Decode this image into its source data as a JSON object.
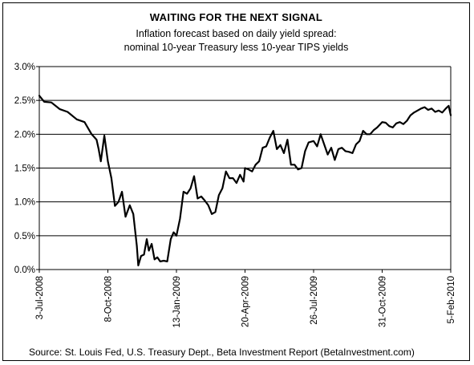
{
  "chart_data": {
    "type": "line",
    "title": "WAITING FOR THE NEXT SIGNAL",
    "subtitle_lines": [
      "Inflation forecast based on daily yield spread:",
      "nominal 10-year Treasury less 10-year TIPS yields"
    ],
    "xlabel": "",
    "ylabel": "",
    "ylim": [
      0,
      3
    ],
    "y_ticks": [
      0,
      0.5,
      1.0,
      1.5,
      2.0,
      2.5,
      3.0
    ],
    "y_tick_labels": [
      "0.0%",
      "0.5%",
      "1.0%",
      "1.5%",
      "2.0%",
      "2.5%",
      "3.0%"
    ],
    "xlim": [
      "2008-07-03",
      "2010-02-05"
    ],
    "x_ticks": [
      "2008-07-03",
      "2008-10-08",
      "2009-01-13",
      "2009-04-20",
      "2009-07-26",
      "2009-10-31",
      "2010-02-05"
    ],
    "x_tick_labels": [
      "3-Jul-2008",
      "8-Oct-2008",
      "13-Jan-2009",
      "20-Apr-2009",
      "26-Jul-2009",
      "31-Oct-2009",
      "5-Feb-2010"
    ],
    "grid": "horizontal",
    "legend": "none",
    "line_color": "#000000",
    "series": [
      {
        "x": [
          "2008-07-03",
          "2008-07-10",
          "2008-07-20",
          "2008-08-01",
          "2008-08-12",
          "2008-08-25",
          "2008-09-05",
          "2008-09-15",
          "2008-09-22",
          "2008-09-25",
          "2008-09-28",
          "2008-10-03",
          "2008-10-08",
          "2008-10-13",
          "2008-10-18",
          "2008-10-23",
          "2008-10-28",
          "2008-11-02",
          "2008-11-08",
          "2008-11-13",
          "2008-11-18",
          "2008-11-20",
          "2008-11-24",
          "2008-11-28",
          "2008-12-02",
          "2008-12-05",
          "2008-12-09",
          "2008-12-13",
          "2008-12-17",
          "2008-12-21",
          "2008-12-26",
          "2008-12-31",
          "2009-01-05",
          "2009-01-09",
          "2009-01-13",
          "2009-01-18",
          "2009-01-23",
          "2009-01-28",
          "2009-02-02",
          "2009-02-07",
          "2009-02-12",
          "2009-02-17",
          "2009-02-22",
          "2009-02-27",
          "2009-03-04",
          "2009-03-09",
          "2009-03-14",
          "2009-03-19",
          "2009-03-24",
          "2009-03-29",
          "2009-04-03",
          "2009-04-08",
          "2009-04-13",
          "2009-04-18",
          "2009-04-20",
          "2009-04-25",
          "2009-04-30",
          "2009-05-05",
          "2009-05-10",
          "2009-05-15",
          "2009-05-20",
          "2009-05-25",
          "2009-05-30",
          "2009-06-04",
          "2009-06-09",
          "2009-06-14",
          "2009-06-19",
          "2009-06-24",
          "2009-06-29",
          "2009-07-04",
          "2009-07-09",
          "2009-07-14",
          "2009-07-19",
          "2009-07-26",
          "2009-07-31",
          "2009-08-05",
          "2009-08-10",
          "2009-08-15",
          "2009-08-20",
          "2009-08-25",
          "2009-08-30",
          "2009-09-04",
          "2009-09-09",
          "2009-09-14",
          "2009-09-19",
          "2009-09-24",
          "2009-09-29",
          "2009-10-04",
          "2009-10-09",
          "2009-10-14",
          "2009-10-19",
          "2009-10-24",
          "2009-10-31",
          "2009-11-05",
          "2009-11-10",
          "2009-11-15",
          "2009-11-20",
          "2009-11-25",
          "2009-11-30",
          "2009-12-05",
          "2009-12-10",
          "2009-12-15",
          "2009-12-20",
          "2009-12-25",
          "2009-12-30",
          "2010-01-04",
          "2010-01-09",
          "2010-01-14",
          "2010-01-19",
          "2010-01-24",
          "2010-01-29",
          "2010-02-02",
          "2010-02-05"
        ],
        "y": [
          2.57,
          2.48,
          2.47,
          2.37,
          2.33,
          2.22,
          2.18,
          2.0,
          1.92,
          1.78,
          1.6,
          1.98,
          1.6,
          1.35,
          0.94,
          1.0,
          1.15,
          0.78,
          0.95,
          0.82,
          0.35,
          0.06,
          0.2,
          0.22,
          0.45,
          0.28,
          0.38,
          0.15,
          0.18,
          0.12,
          0.13,
          0.12,
          0.45,
          0.55,
          0.5,
          0.75,
          1.15,
          1.12,
          1.2,
          1.38,
          1.05,
          1.08,
          1.02,
          0.95,
          0.82,
          0.85,
          1.1,
          1.2,
          1.45,
          1.35,
          1.35,
          1.28,
          1.4,
          1.3,
          1.5,
          1.48,
          1.45,
          1.55,
          1.6,
          1.8,
          1.82,
          1.95,
          2.05,
          1.78,
          1.84,
          1.72,
          1.92,
          1.55,
          1.55,
          1.48,
          1.5,
          1.75,
          1.88,
          1.9,
          1.82,
          2.0,
          1.85,
          1.7,
          1.8,
          1.62,
          1.78,
          1.8,
          1.75,
          1.74,
          1.72,
          1.85,
          1.9,
          2.05,
          2.0,
          2.0,
          2.06,
          2.1,
          2.18,
          2.17,
          2.12,
          2.1,
          2.16,
          2.18,
          2.15,
          2.2,
          2.28,
          2.32,
          2.35,
          2.38,
          2.4,
          2.36,
          2.38,
          2.33,
          2.35,
          2.32,
          2.38,
          2.42,
          2.28
        ]
      }
    ]
  },
  "source_text": "Source:  St. Louis Fed, U.S. Treasury Dept., Beta Investment Report (BetaInvestment.com)"
}
